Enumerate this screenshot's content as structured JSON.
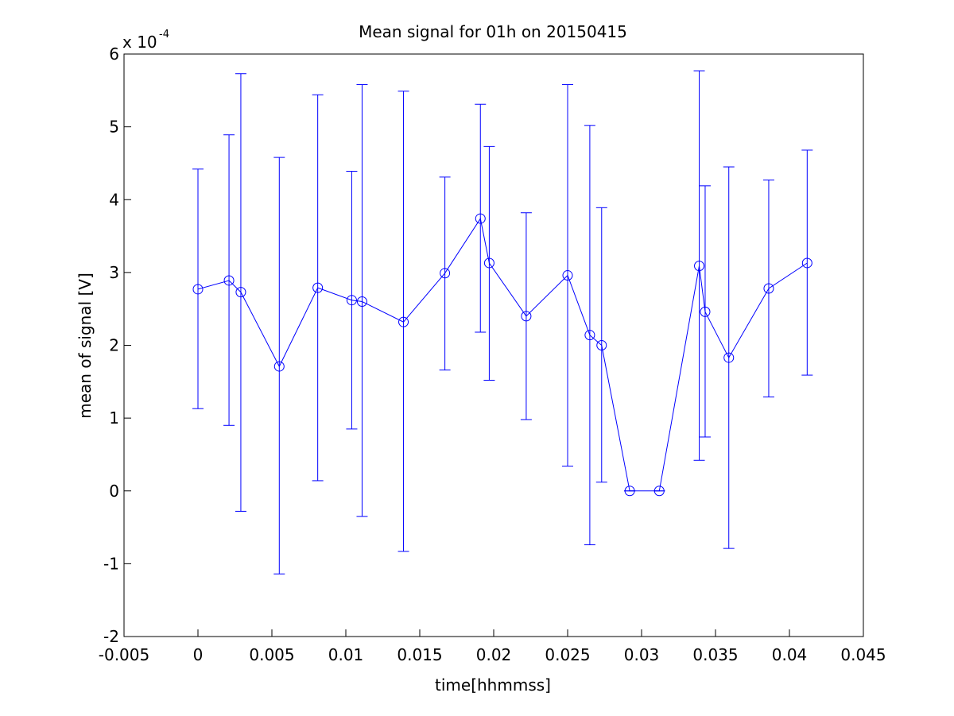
{
  "chart_data": {
    "type": "line",
    "title": "Mean signal for 01h on 20150415",
    "xlabel": "time[hhmmss]",
    "ylabel": "mean of signal [V]",
    "xlim": [
      -0.005,
      0.045
    ],
    "ylim": [
      -2,
      6
    ],
    "y_exponent": {
      "base_text": "x 10",
      "power_text": "-4",
      "multiplier": 0.0001
    },
    "x_ticks": [
      -0.005,
      0,
      0.005,
      0.01,
      0.015,
      0.02,
      0.025,
      0.03,
      0.035,
      0.04,
      0.045
    ],
    "x_tick_labels": [
      "-0.005",
      "0",
      "0.005",
      "0.01",
      "0.015",
      "0.02",
      "0.025",
      "0.03",
      "0.035",
      "0.04",
      "0.045"
    ],
    "y_ticks": [
      -2,
      -1,
      0,
      1,
      2,
      3,
      4,
      5,
      6
    ],
    "y_tick_labels": [
      "-2",
      "-1",
      "0",
      "1",
      "2",
      "3",
      "4",
      "5",
      "6"
    ],
    "grid": false,
    "marker": "circle",
    "colors": {
      "series": "#0000ff",
      "axes": "#000000",
      "background": "#ffffff"
    },
    "series": [
      {
        "x": [
          0.0,
          0.0021,
          0.0029,
          0.0055,
          0.0081,
          0.0104,
          0.0111,
          0.0139,
          0.0167,
          0.0191,
          0.0197,
          0.0222,
          0.025,
          0.0265,
          0.0273,
          0.0292,
          0.0312,
          0.0339,
          0.0343,
          0.0359,
          0.0386,
          0.0412
        ],
        "y": [
          2.77,
          2.89,
          2.73,
          1.71,
          2.79,
          2.62,
          2.6,
          2.32,
          2.99,
          3.74,
          3.13,
          2.4,
          2.96,
          2.14,
          2.0,
          0.0,
          0.0,
          3.09,
          2.46,
          1.83,
          2.78,
          3.13
        ],
        "err_low": [
          1.13,
          0.9,
          -0.28,
          -1.14,
          0.14,
          0.85,
          -0.35,
          -0.83,
          1.66,
          2.18,
          1.52,
          0.98,
          0.34,
          -0.74,
          0.12,
          0.0,
          0.0,
          0.42,
          0.74,
          -0.79,
          1.29,
          1.59
        ],
        "err_high": [
          4.42,
          4.89,
          5.73,
          4.58,
          5.44,
          4.39,
          5.58,
          5.49,
          4.31,
          5.31,
          4.73,
          3.82,
          5.58,
          5.02,
          3.89,
          0.0,
          0.0,
          5.77,
          4.19,
          4.45,
          4.27,
          4.68
        ]
      }
    ]
  }
}
